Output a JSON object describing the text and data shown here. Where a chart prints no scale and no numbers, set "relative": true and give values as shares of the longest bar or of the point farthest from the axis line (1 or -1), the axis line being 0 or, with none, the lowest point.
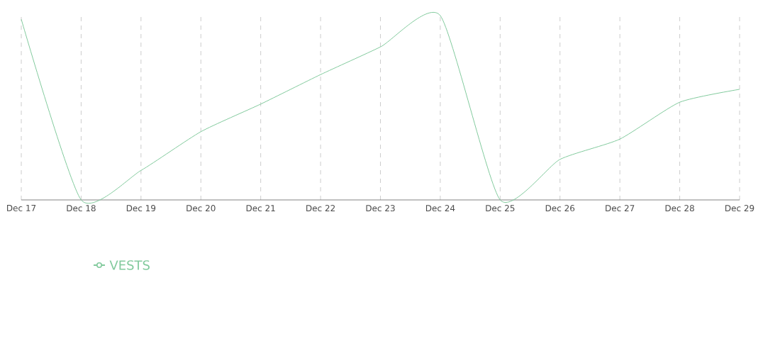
{
  "chart_data": {
    "type": "line",
    "relative": true,
    "categories": [
      "Dec 17",
      "Dec 18",
      "Dec 19",
      "Dec 20",
      "Dec 21",
      "Dec 22",
      "Dec 23",
      "Dec 24",
      "Dec 25",
      "Dec 26",
      "Dec 27",
      "Dec 28",
      "Dec 29"
    ],
    "series": [
      {
        "name": "VESTS",
        "color": "#82ca9d",
        "values": [
          0.98,
          0,
          0.16,
          0.37,
          0.52,
          0.68,
          0.83,
          1,
          0,
          0.22,
          0.33,
          0.53,
          0.6
        ]
      }
    ],
    "grid": true,
    "legend": "bottom",
    "marker": "none",
    "line_style": "solid"
  }
}
